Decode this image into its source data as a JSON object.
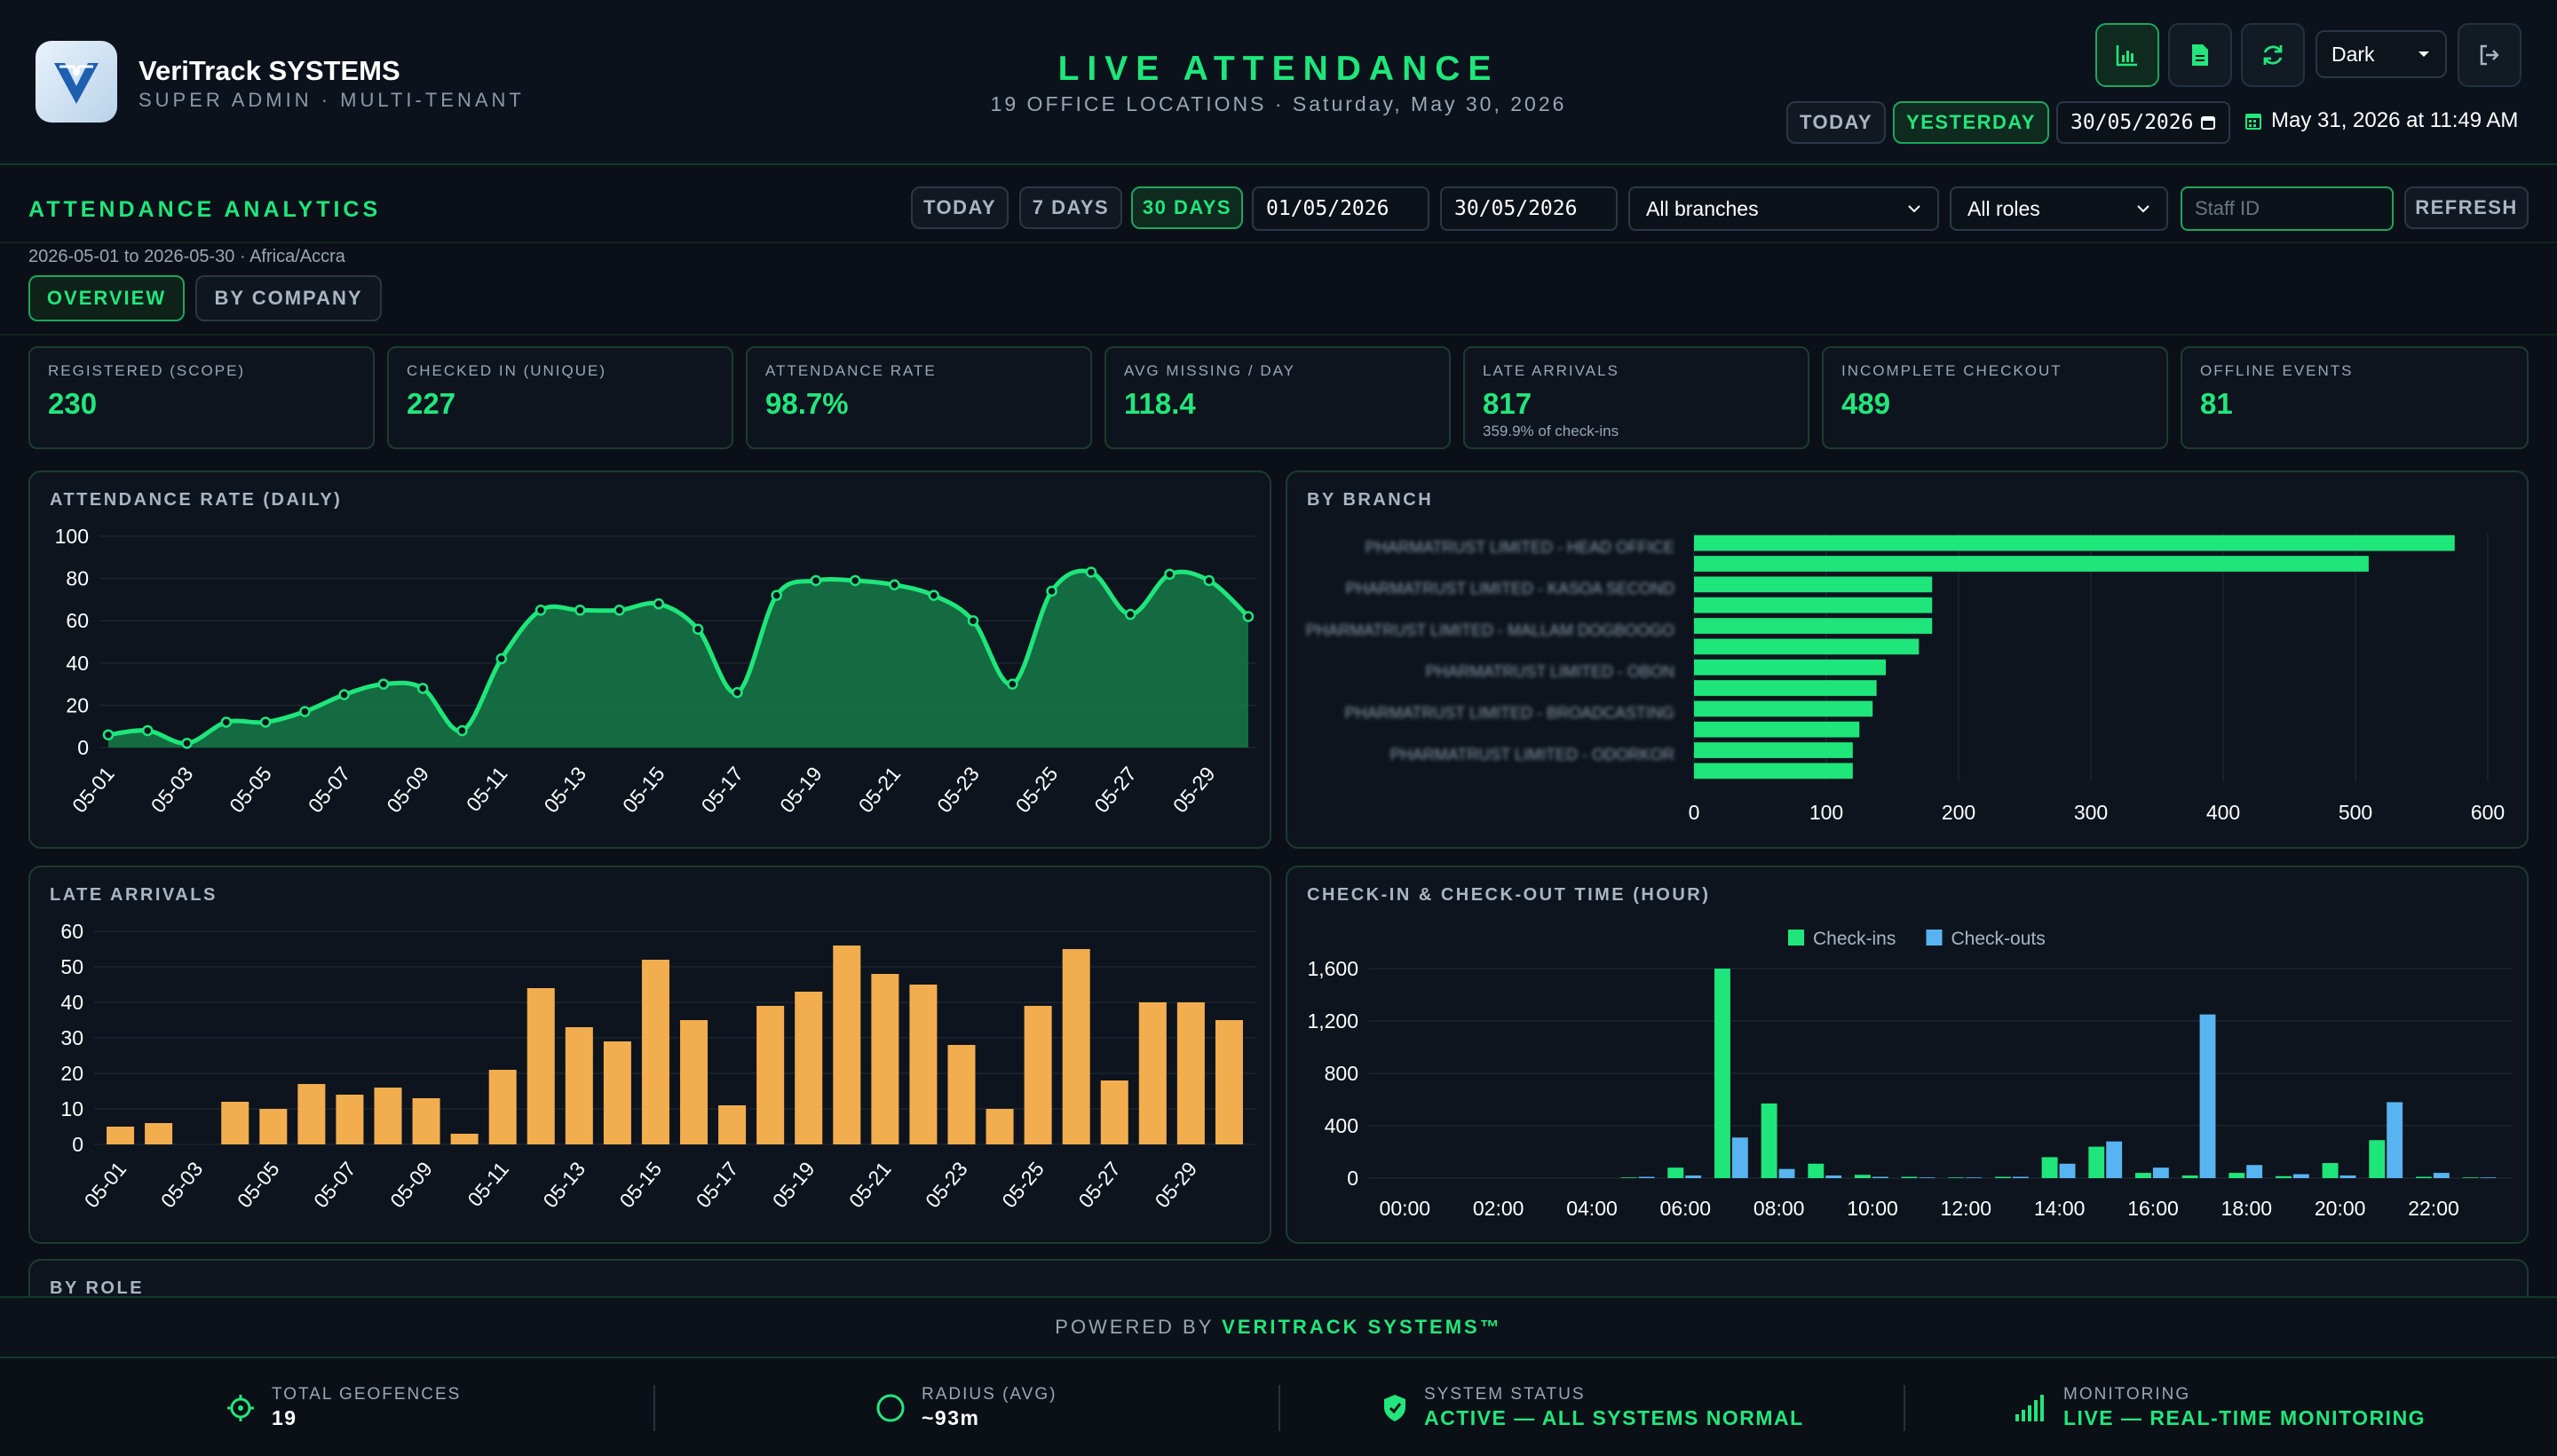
{
  "app": {
    "name": "VeriTrack SYSTEMS",
    "subtitle": "SUPER ADMIN · MULTI-TENANT"
  },
  "header": {
    "title": "LIVE ATTENDANCE",
    "subtitle": "19 OFFICE LOCATIONS · Saturday, May 30, 2026",
    "theme": "Dark",
    "today_label": "TODAY",
    "yesterday_label": "YESTERDAY",
    "date_value": "30/05/2026",
    "clock": "May 31, 2026 at 11:49 AM",
    "icons": [
      "chart-icon",
      "document-icon",
      "refresh-icon",
      "logout-icon"
    ]
  },
  "analytics": {
    "title": "ATTENDANCE ANALYTICS",
    "range_text": "2026-05-01 to 2026-05-30 · Africa/Accra",
    "range_buttons": [
      "TODAY",
      "7 DAYS",
      "30 DAYS"
    ],
    "active_range": "30 DAYS",
    "from_date": "01/05/2026",
    "to_date": "30/05/2026",
    "branch_filter": "All branches",
    "role_filter": "All roles",
    "staff_placeholder": "Staff ID",
    "refresh_label": "REFRESH",
    "tabs": [
      "OVERVIEW",
      "BY COMPANY"
    ],
    "active_tab": "OVERVIEW"
  },
  "kpis": [
    {
      "label": "REGISTERED (SCOPE)",
      "value": "230",
      "note": ""
    },
    {
      "label": "CHECKED IN (UNIQUE)",
      "value": "227",
      "note": ""
    },
    {
      "label": "ATTENDANCE RATE",
      "value": "98.7%",
      "note": ""
    },
    {
      "label": "AVG MISSING / DAY",
      "value": "118.4",
      "note": ""
    },
    {
      "label": "LATE ARRIVALS",
      "value": "817",
      "note": "359.9% of check-ins"
    },
    {
      "label": "INCOMPLETE CHECKOUT",
      "value": "489",
      "note": ""
    },
    {
      "label": "OFFLINE EVENTS",
      "value": "81",
      "note": ""
    }
  ],
  "charts": {
    "attendance_title": "ATTENDANCE RATE (DAILY)",
    "branch_title": "BY BRANCH",
    "late_title": "LATE ARRIVALS",
    "hours_title": "CHECK-IN & CHECK-OUT TIME (HOUR)",
    "role_title": "BY ROLE"
  },
  "chart_data": [
    {
      "type": "area",
      "title": "ATTENDANCE RATE (DAILY)",
      "x": [
        "05-01",
        "05-02",
        "05-03",
        "05-04",
        "05-05",
        "05-06",
        "05-07",
        "05-08",
        "05-09",
        "05-10",
        "05-11",
        "05-12",
        "05-13",
        "05-14",
        "05-15",
        "05-16",
        "05-17",
        "05-18",
        "05-19",
        "05-20",
        "05-21",
        "05-22",
        "05-23",
        "05-24",
        "05-25",
        "05-26",
        "05-27",
        "05-28",
        "05-29",
        "05-30"
      ],
      "x_ticks": [
        "05-01",
        "05-03",
        "05-05",
        "05-07",
        "05-09",
        "05-11",
        "05-13",
        "05-15",
        "05-17",
        "05-19",
        "05-21",
        "05-23",
        "05-25",
        "05-27",
        "05-29"
      ],
      "values": [
        6,
        8,
        2,
        12,
        12,
        17,
        25,
        30,
        28,
        8,
        42,
        65,
        65,
        65,
        68,
        56,
        26,
        72,
        79,
        79,
        77,
        72,
        60,
        30,
        74,
        83,
        63,
        82,
        79,
        62
      ],
      "ylim": [
        0,
        100
      ],
      "y_ticks": [
        0,
        20,
        40,
        60,
        80,
        100
      ],
      "color": "#1ee67b"
    },
    {
      "type": "bar",
      "orientation": "horizontal",
      "title": "BY BRANCH",
      "categories": [
        "PHARMATRUST LIMITED - HEAD OFFICE",
        "",
        "PHARMATRUST LIMITED - KASOA SECOND",
        "",
        "PHARMATRUST LIMITED - MALLAM DOGBOOGO",
        "",
        "PHARMATRUST LIMITED - OBON",
        "",
        "PHARMATRUST LIMITED - BROADCASTING",
        "",
        "PHARMATRUST LIMITED - ODORKOR",
        ""
      ],
      "values": [
        575,
        510,
        180,
        180,
        180,
        170,
        145,
        138,
        135,
        125,
        120,
        120
      ],
      "xlim": [
        0,
        600
      ],
      "x_ticks": [
        0,
        100,
        200,
        300,
        400,
        500,
        600
      ],
      "color": "#1ee67b"
    },
    {
      "type": "bar",
      "title": "LATE ARRIVALS",
      "x": [
        "05-01",
        "05-02",
        "05-03",
        "05-04",
        "05-05",
        "05-06",
        "05-07",
        "05-08",
        "05-09",
        "05-10",
        "05-11",
        "05-12",
        "05-13",
        "05-14",
        "05-15",
        "05-16",
        "05-17",
        "05-18",
        "05-19",
        "05-20",
        "05-21",
        "05-22",
        "05-23",
        "05-24",
        "05-25",
        "05-26",
        "05-27",
        "05-28",
        "05-29",
        "05-30"
      ],
      "x_ticks": [
        "05-01",
        "05-03",
        "05-05",
        "05-07",
        "05-09",
        "05-11",
        "05-13",
        "05-15",
        "05-17",
        "05-19",
        "05-21",
        "05-23",
        "05-25",
        "05-27",
        "05-29"
      ],
      "values": [
        5,
        6,
        0,
        12,
        10,
        17,
        14,
        16,
        13,
        3,
        21,
        44,
        33,
        29,
        52,
        35,
        11,
        39,
        43,
        56,
        48,
        45,
        28,
        10,
        39,
        55,
        18,
        40,
        40,
        35
      ],
      "ylim": [
        0,
        60
      ],
      "y_ticks": [
        0,
        10,
        20,
        30,
        40,
        50,
        60
      ],
      "color": "#f2ad4e"
    },
    {
      "type": "bar",
      "title": "CHECK-IN & CHECK-OUT TIME (HOUR)",
      "categories": [
        "00:00",
        "01:00",
        "02:00",
        "03:00",
        "04:00",
        "05:00",
        "06:00",
        "07:00",
        "08:00",
        "09:00",
        "10:00",
        "11:00",
        "12:00",
        "13:00",
        "14:00",
        "15:00",
        "16:00",
        "17:00",
        "18:00",
        "19:00",
        "20:00",
        "21:00",
        "22:00",
        "23:00"
      ],
      "x_ticks": [
        "00:00",
        "02:00",
        "04:00",
        "06:00",
        "08:00",
        "10:00",
        "12:00",
        "14:00",
        "16:00",
        "18:00",
        "20:00",
        "22:00"
      ],
      "series": [
        {
          "name": "Check-ins",
          "color": "#1ee67b",
          "values": [
            0,
            0,
            0,
            0,
            0,
            5,
            80,
            1600,
            570,
            110,
            25,
            10,
            5,
            10,
            160,
            240,
            40,
            20,
            40,
            15,
            115,
            290,
            10,
            5
          ]
        },
        {
          "name": "Check-outs",
          "color": "#58b4f0",
          "values": [
            0,
            0,
            0,
            0,
            0,
            10,
            20,
            310,
            70,
            20,
            10,
            5,
            5,
            10,
            110,
            280,
            80,
            1250,
            100,
            30,
            20,
            580,
            40,
            5
          ]
        }
      ],
      "ylim": [
        0,
        1600
      ],
      "y_ticks": [
        "0",
        "400",
        "800",
        "1,200",
        "1,600"
      ]
    }
  ],
  "footer": {
    "powered_prefix": "POWERED BY",
    "powered_brand": "VERITRACK SYSTEMS™",
    "stats": [
      {
        "icon": "crosshair-icon",
        "label": "TOTAL GEOFENCES",
        "value": "19"
      },
      {
        "icon": "circle-icon",
        "label": "RADIUS (AVG)",
        "value": "~93m"
      },
      {
        "icon": "shield-icon",
        "label": "SYSTEM STATUS",
        "value": "ACTIVE — ALL SYSTEMS NORMAL"
      },
      {
        "icon": "signal-icon",
        "label": "MONITORING",
        "value": "LIVE — REAL-TIME MONITORING"
      }
    ]
  }
}
